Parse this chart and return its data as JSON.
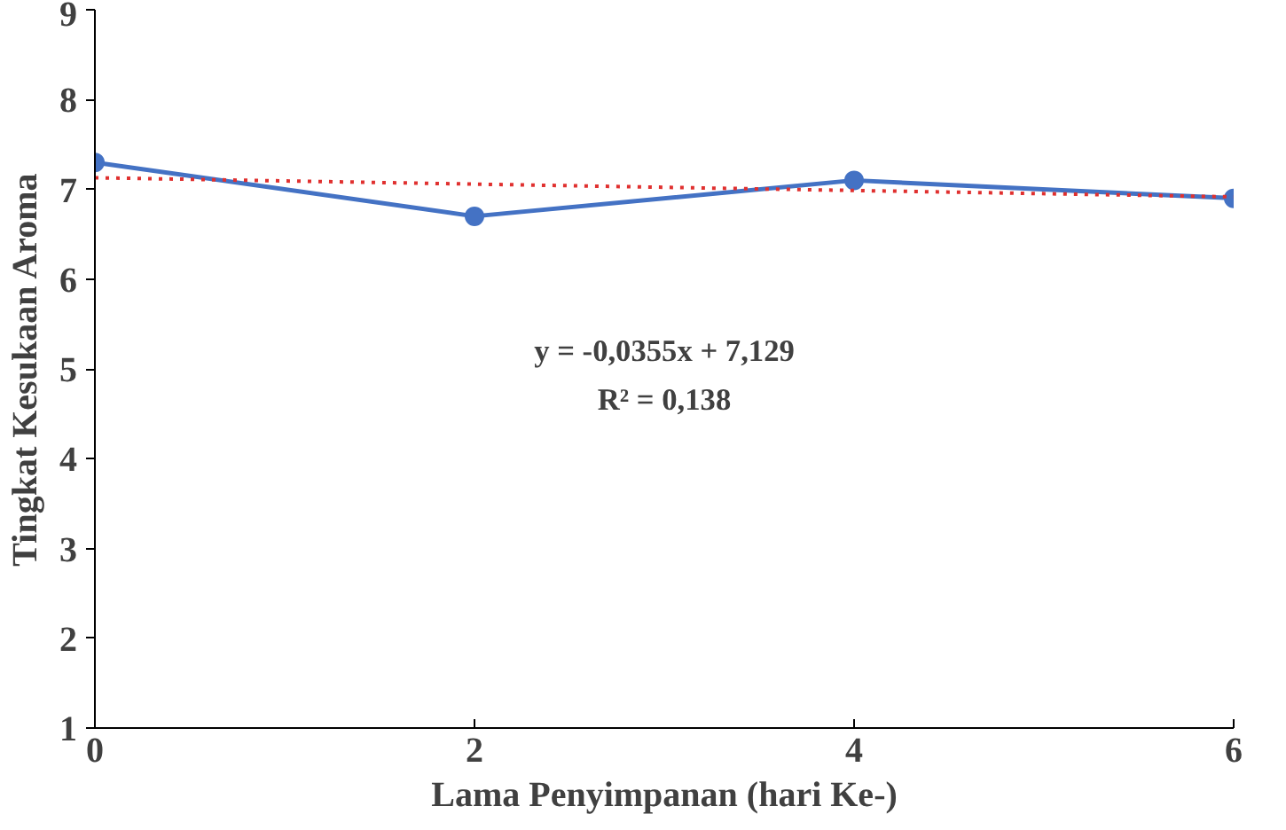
{
  "chart_data": {
    "type": "line",
    "xlabel": "Lama Penyimpanan (hari Ke-)",
    "ylabel": "Tingkat Kesukaan Aroma",
    "x": [
      0,
      2,
      4,
      6
    ],
    "series": [
      {
        "color": "#4472c4",
        "values": [
          7.3,
          6.7,
          7.1,
          6.9
        ],
        "marker": "circle",
        "line_style": "solid"
      },
      {
        "type": "line",
        "color": "#e0302f",
        "x": [
          0,
          6
        ],
        "values": [
          7.129,
          6.916
        ],
        "marker": "none",
        "line_style": "dotted"
      }
    ],
    "xlim": [
      0,
      6
    ],
    "xticks": [
      0,
      2,
      4,
      6
    ],
    "ylim": [
      1,
      9
    ],
    "yticks": [
      1,
      2,
      3,
      4,
      5,
      6,
      7,
      8,
      9
    ],
    "grid": false,
    "annotations": [
      "y = -0,0355x + 7,129",
      "R² = 0,138"
    ]
  }
}
